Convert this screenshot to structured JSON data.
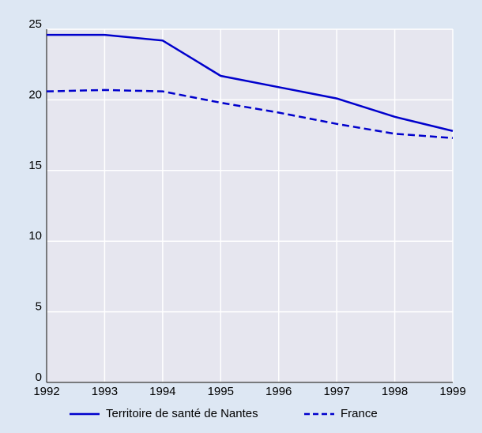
{
  "chart_data": {
    "type": "line",
    "x": [
      1992,
      1993,
      1994,
      1995,
      1996,
      1997,
      1998,
      1999
    ],
    "series": [
      {
        "name": "Territoire de santé de Nantes",
        "color": "#0000cc",
        "style": "solid",
        "values": [
          24.6,
          24.6,
          24.2,
          21.7,
          20.9,
          20.1,
          18.8,
          17.8
        ]
      },
      {
        "name": "France",
        "color": "#0000cc",
        "style": "dashed",
        "values": [
          20.6,
          20.7,
          20.6,
          19.8,
          19.1,
          18.3,
          17.6,
          17.3
        ]
      }
    ],
    "xlim": [
      1992,
      1999
    ],
    "xticks": [
      1992,
      1993,
      1994,
      1995,
      1996,
      1997,
      1998,
      1999
    ],
    "ylim": [
      0,
      25
    ],
    "yticks": [
      0,
      5,
      10,
      15,
      20,
      25
    ],
    "grid": true,
    "legend": "bottom"
  }
}
